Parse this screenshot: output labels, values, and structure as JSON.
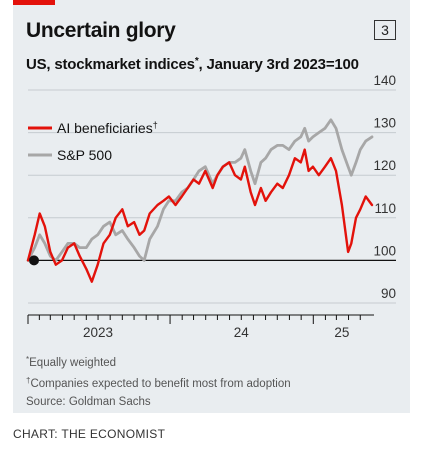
{
  "header": {
    "chart_number": "3"
  },
  "notes": {
    "n1_mark": "*",
    "n1": "Equally weighted",
    "n2_mark": "†",
    "n2": "Companies expected to benefit most from adoption",
    "source": "Source: Goldman Sachs"
  },
  "credit": "CHART: THE ECONOMIST",
  "chart_data": {
    "type": "line",
    "title": "Uncertain glory",
    "subtitle": "US, stockmarket indices",
    "subtitle_mark": "*",
    "subtitle_tail": ", January 3rd 2023=100",
    "y_ticks": [
      "140",
      "130",
      "120",
      "110",
      "100",
      "90"
    ],
    "ylim": [
      90,
      140
    ],
    "y_axis_position": "right",
    "baseline": 100,
    "x_ticks": [
      "2023",
      "24",
      "25"
    ],
    "xlim": [
      "2023-01-03",
      "2025-05-31"
    ],
    "grid": true,
    "legend_placement": "top-left",
    "series": [
      {
        "name": "AI beneficiaries",
        "name_mark": "†",
        "color": "#e3120b",
        "x": [
          "2023-01-03",
          "2023-01-20",
          "2023-02-02",
          "2023-02-15",
          "2023-03-01",
          "2023-03-15",
          "2023-03-31",
          "2023-04-15",
          "2023-05-01",
          "2023-05-15",
          "2023-06-01",
          "2023-06-15",
          "2023-06-30",
          "2023-07-15",
          "2023-07-31",
          "2023-08-15",
          "2023-09-01",
          "2023-09-15",
          "2023-10-01",
          "2023-10-15",
          "2023-10-27",
          "2023-11-10",
          "2023-11-30",
          "2023-12-15",
          "2023-12-29",
          "2024-01-15",
          "2024-01-31",
          "2024-02-15",
          "2024-03-01",
          "2024-03-15",
          "2024-03-31",
          "2024-04-19",
          "2024-05-01",
          "2024-05-15",
          "2024-05-31",
          "2024-06-15",
          "2024-06-30",
          "2024-07-10",
          "2024-07-25",
          "2024-08-05",
          "2024-08-20",
          "2024-09-01",
          "2024-09-15",
          "2024-10-01",
          "2024-10-15",
          "2024-10-31",
          "2024-11-15",
          "2024-11-30",
          "2024-12-10",
          "2024-12-20",
          "2024-12-31",
          "2025-01-15",
          "2025-01-31",
          "2025-02-15",
          "2025-02-28",
          "2025-03-15",
          "2025-03-31",
          "2025-04-08",
          "2025-04-20",
          "2025-05-01",
          "2025-05-15",
          "2025-05-31"
        ],
        "values": [
          100,
          106,
          111,
          108,
          102,
          99,
          100,
          103,
          104,
          101,
          98,
          95,
          99,
          104,
          106,
          110,
          112,
          108,
          109,
          106,
          107,
          111,
          113,
          114,
          115,
          113,
          115,
          117,
          119,
          118,
          121,
          117,
          120,
          122,
          123,
          120,
          119,
          122,
          116,
          113,
          117,
          114,
          116,
          118,
          117,
          120,
          124,
          123,
          126,
          121,
          122,
          120,
          122,
          124,
          121,
          113,
          102,
          104,
          110,
          112,
          115,
          113
        ]
      },
      {
        "name": "S&P 500",
        "color": "#a7a7a7",
        "x": [
          "2023-01-03",
          "2023-01-20",
          "2023-02-02",
          "2023-02-15",
          "2023-03-01",
          "2023-03-15",
          "2023-03-31",
          "2023-04-15",
          "2023-05-01",
          "2023-05-15",
          "2023-06-01",
          "2023-06-15",
          "2023-06-30",
          "2023-07-15",
          "2023-07-31",
          "2023-08-15",
          "2023-09-01",
          "2023-09-15",
          "2023-10-01",
          "2023-10-15",
          "2023-10-27",
          "2023-11-10",
          "2023-11-30",
          "2023-12-15",
          "2023-12-29",
          "2024-01-15",
          "2024-01-31",
          "2024-02-15",
          "2024-03-01",
          "2024-03-15",
          "2024-03-31",
          "2024-04-19",
          "2024-05-01",
          "2024-05-15",
          "2024-05-31",
          "2024-06-15",
          "2024-06-30",
          "2024-07-10",
          "2024-07-25",
          "2024-08-05",
          "2024-08-20",
          "2024-09-01",
          "2024-09-15",
          "2024-10-01",
          "2024-10-15",
          "2024-10-31",
          "2024-11-15",
          "2024-11-30",
          "2024-12-10",
          "2024-12-20",
          "2024-12-31",
          "2025-01-15",
          "2025-01-31",
          "2025-02-15",
          "2025-02-28",
          "2025-03-15",
          "2025-03-31",
          "2025-04-08",
          "2025-04-20",
          "2025-05-01",
          "2025-05-15",
          "2025-05-31"
        ],
        "values": [
          100,
          103,
          106,
          104,
          101,
          100,
          102,
          104,
          104,
          103,
          103,
          105,
          106,
          108,
          109,
          106,
          107,
          105,
          103,
          101,
          100,
          105,
          108,
          112,
          114,
          114,
          116,
          117,
          119,
          121,
          122,
          118,
          120,
          122,
          123,
          123,
          124,
          126,
          121,
          118,
          123,
          124,
          126,
          127,
          127,
          126,
          128,
          129,
          131,
          128,
          129,
          130,
          131,
          133,
          131,
          126,
          122,
          120,
          123,
          126,
          128,
          129
        ]
      }
    ]
  }
}
